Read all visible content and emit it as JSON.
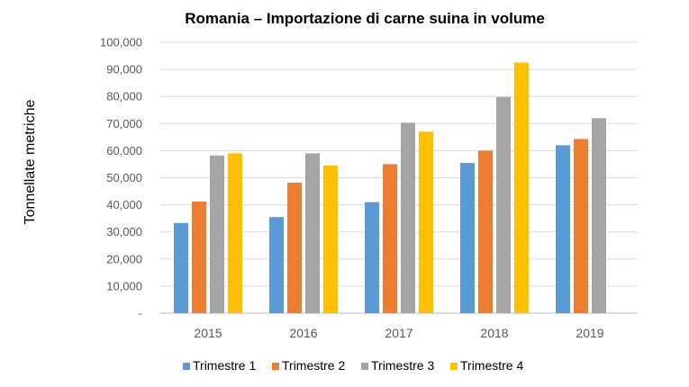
{
  "chart_data": {
    "type": "bar",
    "title": "Romania – Importazione di carne suina in volume",
    "xlabel": "",
    "ylabel": "Tonnellate metriche",
    "categories": [
      "2015",
      "2016",
      "2017",
      "2018",
      "2019"
    ],
    "ylim": [
      0,
      100000
    ],
    "yticks": [
      0,
      10000,
      20000,
      30000,
      40000,
      50000,
      60000,
      70000,
      80000,
      90000,
      100000
    ],
    "ytick_labels": [
      "-",
      "10,000",
      "20,000",
      "30,000",
      "40,000",
      "50,000",
      "60,000",
      "70,000",
      "80,000",
      "90,000",
      "100,000"
    ],
    "grid": true,
    "legend_position": "bottom",
    "series": [
      {
        "name": "Trimestre 1",
        "color": "#5b9bd5",
        "values": [
          33300,
          35500,
          41000,
          55500,
          62000
        ]
      },
      {
        "name": "Trimestre 2",
        "color": "#ed7d31",
        "values": [
          41200,
          48200,
          55000,
          60000,
          64300
        ]
      },
      {
        "name": "Trimestre 3",
        "color": "#a5a5a5",
        "values": [
          58200,
          59000,
          70300,
          79800,
          72000
        ]
      },
      {
        "name": "Trimestre 4",
        "color": "#ffc000",
        "values": [
          59000,
          54500,
          67000,
          92500,
          null
        ]
      }
    ]
  }
}
